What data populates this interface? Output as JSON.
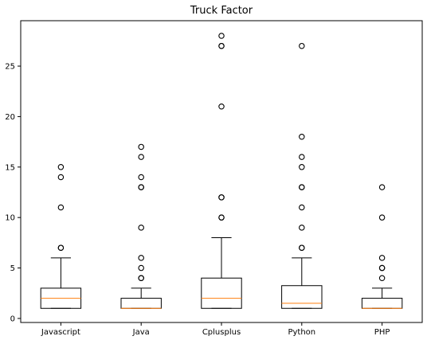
{
  "chart_data": {
    "type": "boxplot",
    "title": "Truck Factor",
    "xlabel": "",
    "ylabel": "",
    "ylim": [
      -0.4,
      29.5
    ],
    "yticks": [
      0,
      5,
      10,
      15,
      20,
      25
    ],
    "grid": false,
    "colors": {
      "box": "#000000",
      "median": "#ff7f0e",
      "outlier": "#000000",
      "background": "#ffffff"
    },
    "categories": [
      "Javascript",
      "Java",
      "Cplusplus",
      "Python",
      "PHP"
    ],
    "boxes": [
      {
        "name": "Javascript",
        "whisker_low": 1,
        "q1": 1,
        "median": 2,
        "q3": 3,
        "whisker_high": 6,
        "outliers": [
          7,
          7,
          11,
          14,
          15
        ]
      },
      {
        "name": "Java",
        "whisker_low": 1,
        "q1": 1,
        "median": 1,
        "q3": 2,
        "whisker_high": 3,
        "outliers": [
          4,
          4,
          5,
          6,
          9,
          13,
          13,
          14,
          16,
          17
        ]
      },
      {
        "name": "Cplusplus",
        "whisker_low": 1,
        "q1": 1,
        "median": 2,
        "q3": 4,
        "whisker_high": 8,
        "outliers": [
          10,
          10,
          12,
          12,
          21,
          27,
          27,
          28
        ]
      },
      {
        "name": "Python",
        "whisker_low": 1,
        "q1": 1,
        "median": 1.5,
        "q3": 3.25,
        "whisker_high": 6,
        "outliers": [
          7,
          7,
          9,
          11,
          13,
          13,
          15,
          16,
          18,
          27
        ]
      },
      {
        "name": "PHP",
        "whisker_low": 1,
        "q1": 1,
        "median": 1,
        "q3": 2,
        "whisker_high": 3,
        "outliers": [
          4,
          5,
          5,
          6,
          10,
          13
        ]
      }
    ]
  }
}
